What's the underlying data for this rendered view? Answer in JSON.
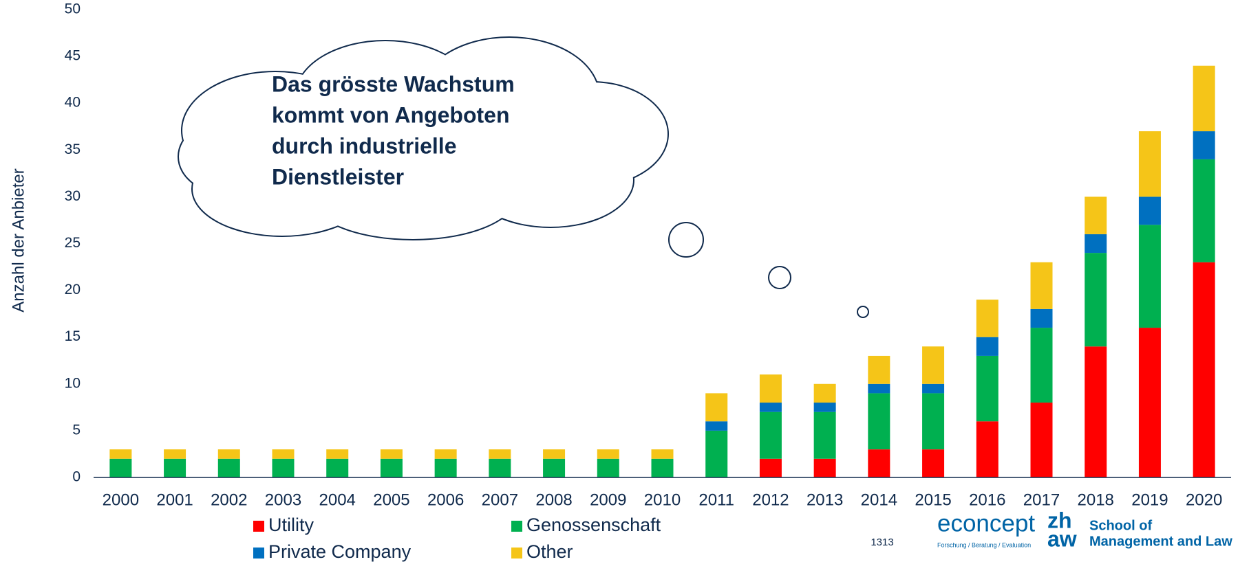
{
  "chart_data": {
    "type": "stacked_bar",
    "y_label": "Anzahl der Anbieter",
    "annotation": [
      "Das grösste Wachstum",
      "kommt von Angeboten",
      "durch industrielle",
      "Dienstleister"
    ],
    "categories": [
      "2000",
      "2001",
      "2002",
      "2003",
      "2004",
      "2005",
      "2006",
      "2007",
      "2008",
      "2009",
      "2010",
      "2011",
      "2012",
      "2013",
      "2014",
      "2015",
      "2016",
      "2017",
      "2018",
      "2019",
      "2020"
    ],
    "series": [
      {
        "name": "Utility",
        "color": "#ff0000",
        "values": [
          0,
          0,
          0,
          0,
          0,
          0,
          0,
          0,
          0,
          0,
          0,
          0,
          2,
          2,
          3,
          3,
          6,
          8,
          14,
          16,
          23
        ]
      },
      {
        "name": "Genossenschaft",
        "color": "#00b050",
        "values": [
          2,
          2,
          2,
          2,
          2,
          2,
          2,
          2,
          2,
          2,
          2,
          5,
          5,
          5,
          6,
          6,
          7,
          8,
          10,
          11,
          11
        ]
      },
      {
        "name": "Private Company",
        "color": "#0070c0",
        "values": [
          0,
          0,
          0,
          0,
          0,
          0,
          0,
          0,
          0,
          0,
          0,
          1,
          1,
          1,
          1,
          1,
          2,
          2,
          2,
          3,
          3
        ]
      },
      {
        "name": "Other",
        "color": "#f5c518",
        "values": [
          1,
          1,
          1,
          1,
          1,
          1,
          1,
          1,
          1,
          1,
          1,
          3,
          3,
          2,
          3,
          4,
          4,
          5,
          4,
          7,
          7
        ]
      }
    ],
    "ylim": [
      0,
      50
    ],
    "yticks": [
      0,
      5,
      10,
      15,
      20,
      25,
      30,
      35,
      40,
      45,
      50
    ],
    "grid": false,
    "legend": "bottom"
  },
  "footer": {
    "page": "1313",
    "logo": "econcept",
    "tagline": "Forschung / Beratung / Evaluation",
    "logo2_top": "zh",
    "logo2_bottom": "aw",
    "school_line1": "School of",
    "school_line2": "Management and Law"
  }
}
